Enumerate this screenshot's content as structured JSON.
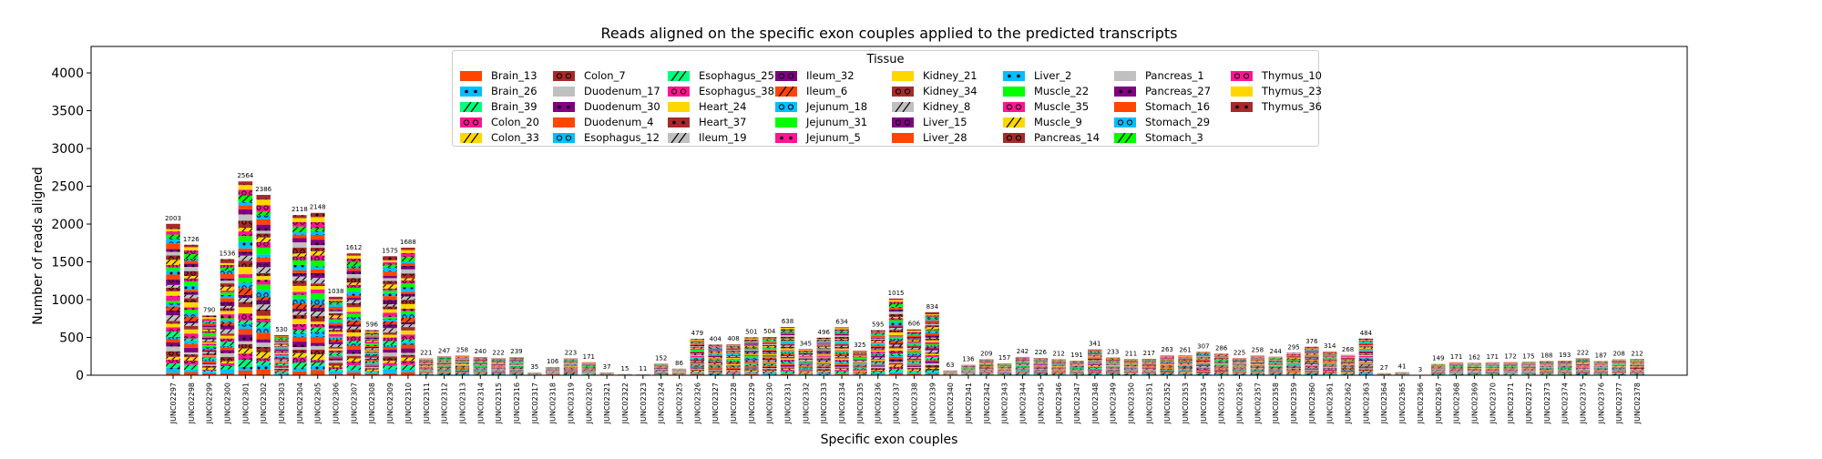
{
  "chart_data": {
    "type": "bar",
    "stacked": true,
    "title": "Reads aligned on the specific exon couples applied to the predicted transcripts",
    "xlabel": "Specific exon couples",
    "ylabel": "Number of reads aligned",
    "ylim": [
      0,
      4350
    ],
    "yticks": [
      0,
      500,
      1000,
      1500,
      2000,
      2500,
      3000,
      3500,
      4000
    ],
    "grid": false,
    "legend_title": "Tissue",
    "legend_placement": "top-center",
    "categories": [
      "JUNC02297",
      "JUNC02298",
      "JUNC02299",
      "JUNC02300",
      "JUNC02301",
      "JUNC02302",
      "JUNC02303",
      "JUNC02304",
      "JUNC02305",
      "JUNC02306",
      "JUNC02307",
      "JUNC02308",
      "JUNC02309",
      "JUNC02310",
      "JUNC02311",
      "JUNC02312",
      "JUNC02313",
      "JUNC02314",
      "JUNC02315",
      "JUNC02316",
      "JUNC02317",
      "JUNC02318",
      "JUNC02319",
      "JUNC02320",
      "JUNC02321",
      "JUNC02322",
      "JUNC02323",
      "JUNC02324",
      "JUNC02325",
      "JUNC02326",
      "JUNC02327",
      "JUNC02328",
      "JUNC02329",
      "JUNC02330",
      "JUNC02331",
      "JUNC02332",
      "JUNC02333",
      "JUNC02334",
      "JUNC02335",
      "JUNC02336",
      "JUNC02337",
      "JUNC02338",
      "JUNC02339",
      "JUNC02340",
      "JUNC02341",
      "JUNC02342",
      "JUNC02343",
      "JUNC02344",
      "JUNC02345",
      "JUNC02346",
      "JUNC02347",
      "JUNC02348",
      "JUNC02349",
      "JUNC02350",
      "JUNC02351",
      "JUNC02352",
      "JUNC02353",
      "JUNC02354",
      "JUNC02355",
      "JUNC02356",
      "JUNC02357",
      "JUNC02358",
      "JUNC02359",
      "JUNC02360",
      "JUNC02361",
      "JUNC02362",
      "JUNC02363",
      "JUNC02364",
      "JUNC02365",
      "JUNC02366",
      "JUNC02367",
      "JUNC02368",
      "JUNC02369",
      "JUNC02370",
      "JUNC02371",
      "JUNC02372",
      "JUNC02373",
      "JUNC02374",
      "JUNC02375",
      "JUNC02376",
      "JUNC02377",
      "JUNC02378"
    ],
    "totals": [
      2003,
      1726,
      790,
      1536,
      2564,
      2386,
      530,
      2118,
      2148,
      1038,
      1612,
      596,
      1575,
      1688,
      221,
      247,
      258,
      240,
      222,
      239,
      35,
      106,
      223,
      171,
      37,
      15,
      11,
      152,
      86,
      479,
      404,
      408,
      501,
      504,
      638,
      345,
      496,
      634,
      325,
      595,
      1015,
      606,
      834,
      63,
      136,
      209,
      157,
      242,
      226,
      212,
      191,
      341,
      233,
      211,
      217,
      263,
      261,
      307,
      286,
      225,
      258,
      244,
      295,
      376,
      314,
      268,
      484,
      27,
      41,
      3,
      149,
      171,
      162,
      171,
      172,
      175,
      188,
      193,
      222,
      187,
      208,
      212
    ],
    "series": [
      {
        "name": "Brain_13",
        "color": "#ff4500",
        "hatch": "none"
      },
      {
        "name": "Brain_26",
        "color": "#00bfff",
        "hatch": "dots"
      },
      {
        "name": "Brain_39",
        "color": "#00ff7f",
        "hatch": "slash"
      },
      {
        "name": "Colon_20",
        "color": "#ff1493",
        "hatch": "rings"
      },
      {
        "name": "Colon_33",
        "color": "#ffd700",
        "hatch": "slash"
      },
      {
        "name": "Colon_7",
        "color": "#a52a2a",
        "hatch": "rings"
      },
      {
        "name": "Duodenum_17",
        "color": "#c0c0c0",
        "hatch": "none"
      },
      {
        "name": "Duodenum_30",
        "color": "#800080",
        "hatch": "dots"
      },
      {
        "name": "Duodenum_4",
        "color": "#ff4500",
        "hatch": "none"
      },
      {
        "name": "Esophagus_12",
        "color": "#00bfff",
        "hatch": "rings"
      },
      {
        "name": "Esophagus_25",
        "color": "#00ff7f",
        "hatch": "slash"
      },
      {
        "name": "Esophagus_38",
        "color": "#ff1493",
        "hatch": "rings"
      },
      {
        "name": "Heart_24",
        "color": "#ffd700",
        "hatch": "none"
      },
      {
        "name": "Heart_37",
        "color": "#a52a2a",
        "hatch": "dots"
      },
      {
        "name": "Ileum_19",
        "color": "#c0c0c0",
        "hatch": "slash"
      },
      {
        "name": "Ileum_32",
        "color": "#800080",
        "hatch": "rings"
      },
      {
        "name": "Ileum_6",
        "color": "#ff4500",
        "hatch": "slash"
      },
      {
        "name": "Jejunum_18",
        "color": "#00bfff",
        "hatch": "rings"
      },
      {
        "name": "Jejunum_31",
        "color": "#00ff00",
        "hatch": "none"
      },
      {
        "name": "Jejunum_5",
        "color": "#ff1493",
        "hatch": "dots"
      },
      {
        "name": "Kidney_21",
        "color": "#ffd700",
        "hatch": "none"
      },
      {
        "name": "Kidney_34",
        "color": "#a52a2a",
        "hatch": "rings"
      },
      {
        "name": "Kidney_8",
        "color": "#c0c0c0",
        "hatch": "slash"
      },
      {
        "name": "Liver_15",
        "color": "#800080",
        "hatch": "rings"
      },
      {
        "name": "Liver_28",
        "color": "#ff4500",
        "hatch": "none"
      },
      {
        "name": "Liver_2",
        "color": "#00bfff",
        "hatch": "dots"
      },
      {
        "name": "Muscle_22",
        "color": "#00ff00",
        "hatch": "none"
      },
      {
        "name": "Muscle_35",
        "color": "#ff1493",
        "hatch": "rings"
      },
      {
        "name": "Muscle_9",
        "color": "#ffd700",
        "hatch": "slash"
      },
      {
        "name": "Pancreas_14",
        "color": "#a52a2a",
        "hatch": "rings"
      },
      {
        "name": "Pancreas_1",
        "color": "#c0c0c0",
        "hatch": "none"
      },
      {
        "name": "Pancreas_27",
        "color": "#800080",
        "hatch": "dots"
      },
      {
        "name": "Stomach_16",
        "color": "#ff4500",
        "hatch": "none"
      },
      {
        "name": "Stomach_29",
        "color": "#00bfff",
        "hatch": "rings"
      },
      {
        "name": "Stomach_3",
        "color": "#00ff00",
        "hatch": "slash"
      },
      {
        "name": "Thymus_10",
        "color": "#ff1493",
        "hatch": "rings"
      },
      {
        "name": "Thymus_23",
        "color": "#ffd700",
        "hatch": "none"
      },
      {
        "name": "Thymus_36",
        "color": "#a52a2a",
        "hatch": "dots"
      }
    ]
  }
}
